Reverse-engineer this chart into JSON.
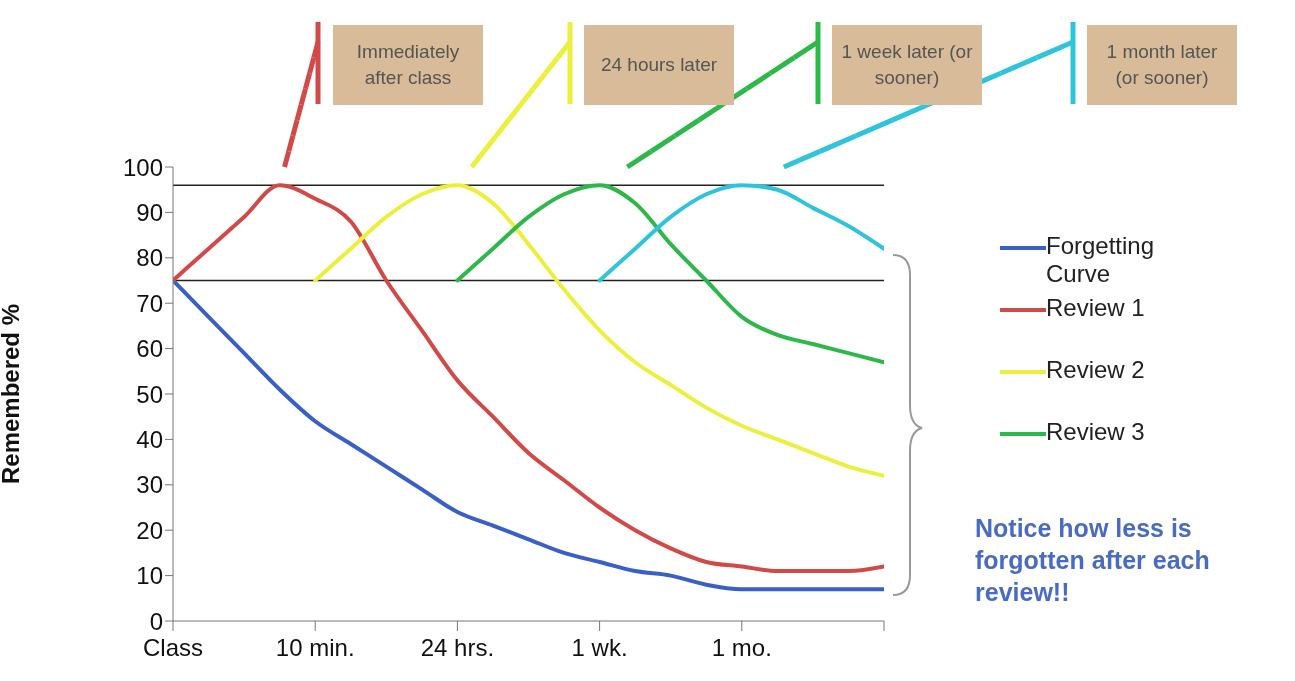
{
  "chart_data": {
    "type": "line",
    "ylabel": "Remembered %",
    "categories": [
      "Class",
      null,
      null,
      null,
      "10 min.",
      null,
      null,
      null,
      "24 hrs.",
      null,
      null,
      null,
      "1 wk.",
      null,
      null,
      null,
      "1 mo.",
      null,
      null,
      null,
      null
    ],
    "ylim": [
      0,
      100
    ],
    "yticks": [
      0,
      10,
      20,
      30,
      40,
      50,
      60,
      70,
      80,
      90,
      100
    ],
    "series": [
      {
        "name": "Forgetting Curve",
        "color": "#3a5fc8",
        "values": [
          75,
          67,
          59,
          51,
          44,
          39,
          34,
          29,
          24,
          21,
          18,
          15,
          13,
          11,
          10,
          8,
          7,
          7,
          7,
          7,
          7
        ]
      },
      {
        "name": "Review 1",
        "color": "#d24a48",
        "values": [
          75,
          82,
          89,
          96,
          93,
          88,
          75,
          64,
          53,
          45,
          37,
          31,
          25,
          20,
          16,
          13,
          12,
          11,
          11,
          11,
          12
        ]
      },
      {
        "name": "Review 2",
        "color": "#ecef3c",
        "values": [
          null,
          null,
          null,
          null,
          75,
          82,
          89,
          94,
          96,
          92,
          83,
          73,
          64,
          57,
          52,
          47,
          43,
          40,
          37,
          34,
          32
        ]
      },
      {
        "name": "Review 3",
        "color": "#2db84a",
        "values": [
          null,
          null,
          null,
          null,
          null,
          null,
          null,
          null,
          75,
          82,
          89,
          94,
          96,
          92,
          83,
          75,
          67,
          63,
          61,
          59,
          57
        ]
      },
      {
        "color": "#2ec4dc",
        "values": [
          null,
          null,
          null,
          null,
          null,
          null,
          null,
          null,
          null,
          null,
          null,
          null,
          75,
          82,
          89,
          94,
          96,
          95,
          91,
          87,
          82
        ]
      }
    ],
    "ref_lines": [
      {
        "axis": "y",
        "value": 96,
        "color": "#222222"
      },
      {
        "axis": "y",
        "value": 75,
        "color": "#222222"
      }
    ],
    "legend": "right",
    "annotations": [
      "Immediately after class",
      "24 hours later",
      "1 week later (or sooner)",
      "1 month later (or sooner)",
      "Notice how less is forgotten after each review!!"
    ]
  }
}
